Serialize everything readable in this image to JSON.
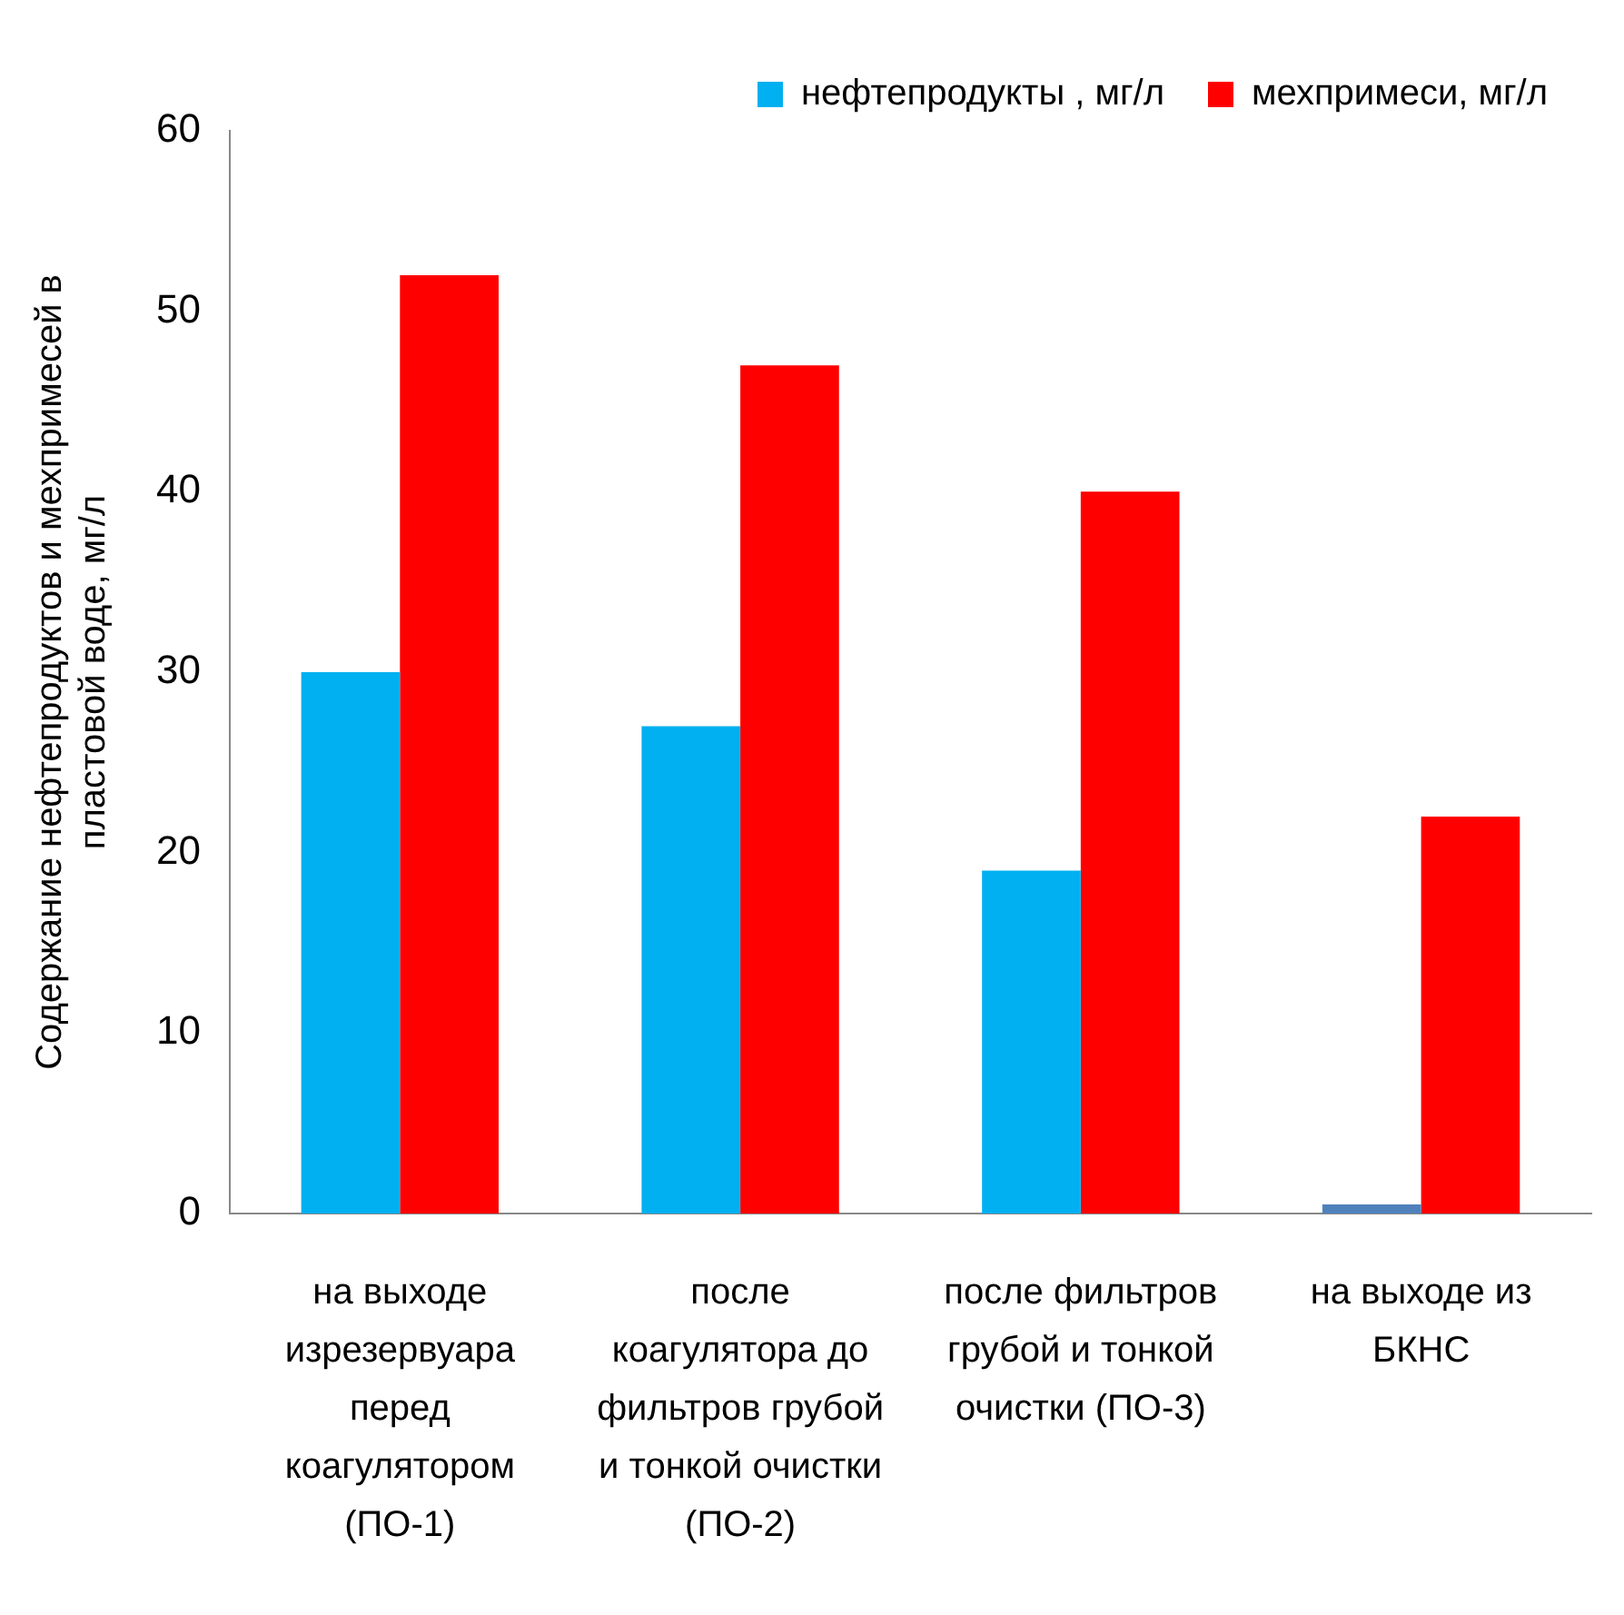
{
  "chart_data": {
    "type": "bar",
    "ylabel": "Содержание нефтепродуктов  и мехпримесей в пластовой воде, мг/л",
    "categories": [
      "на выходе изрезервуара перед коагулятором (ПО-1)",
      "после коагулятора до фильтров грубой и тонкой очистки (ПО-2)",
      "после фильтров грубой и тонкой очистки (ПО-3)",
      "на выходе из БКНС"
    ],
    "series": [
      {
        "name": "нефтепродукты , мг/л",
        "color": "#00b0f0",
        "colors": [
          "#00b0f0",
          "#00b0f0",
          "#00b0f0",
          "#4f81bd"
        ],
        "values": [
          30,
          27,
          19,
          0.5
        ]
      },
      {
        "name": "мехпримеси, мг/л",
        "color": "#ff0000",
        "values": [
          52,
          47,
          40,
          22
        ]
      }
    ],
    "ylim": [
      0,
      60
    ],
    "yticks": [
      0,
      10,
      20,
      30,
      40,
      50,
      60
    ],
    "grid": false,
    "legend": "top right"
  }
}
